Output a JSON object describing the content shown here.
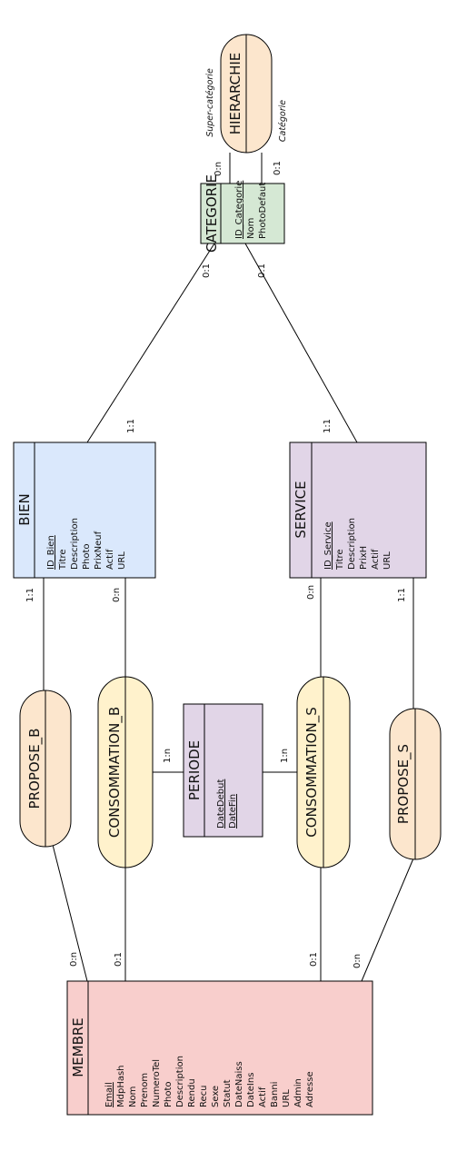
{
  "colors": {
    "membre": "#f8cecc",
    "bien": "#dae8fc",
    "service": "#e1d5e7",
    "categorie": "#d5e8d4",
    "periode": "#e1d5e7",
    "assoc_orange": "#fce6cd",
    "assoc_yellow": "#fff2cc",
    "stroke": "#000000"
  },
  "entities": {
    "membre": {
      "title": "MEMBRE",
      "attributes": [
        "Email",
        "MdpHash",
        "Nom",
        "Prenom",
        "NumeroTel",
        "Photo",
        "Description",
        "Rendu",
        "Recu",
        "Sexe",
        "Statut",
        "DateNaiss",
        "DateIns",
        "Actif",
        "Banni",
        "URL",
        "Admin",
        "Adresse"
      ]
    },
    "bien": {
      "title": "BIEN",
      "attributes": [
        "ID_Bien",
        "Titre",
        "Description",
        "Photo",
        "PrixNeuf",
        "Actif",
        "URL"
      ]
    },
    "service": {
      "title": "SERVICE",
      "attributes": [
        "ID_Service",
        "Titre",
        "Description",
        "PrixH",
        "Actif",
        "URL"
      ]
    },
    "categorie": {
      "title": "CATEGORIE",
      "attributes": [
        "ID_Categorie",
        "Nom",
        "PhotoDefaut"
      ]
    },
    "periode": {
      "title": "PERIODE",
      "attributes": [
        "DateDebut",
        "DateFin"
      ]
    }
  },
  "associations": {
    "hierarchie": "HIERARCHIE",
    "propose_b": "PROPOSE_B",
    "consommation_b": "CONSOMMATION_B",
    "consommation_s": "CONSOMMATION_S",
    "propose_s": "PROPOSE_S"
  },
  "cardinalities": {
    "hier_super": "0:n",
    "hier_cat": "0:1",
    "cat_bien": "0:1",
    "cat_service": "0:1",
    "bien_cat": "1:1",
    "service_cat": "1:1",
    "bien_proposeb": "1:1",
    "bien_consob": "0:n",
    "service_consos": "0:n",
    "service_proposes": "1:1",
    "periode_consob": "1:n",
    "periode_consos": "1:n",
    "membre_proposeb": "0:n",
    "membre_consob": "0:1",
    "membre_consos": "0:1",
    "membre_proposes": "0:n"
  },
  "roles": {
    "super": "Super-catégorie",
    "cat": "Catégorie"
  }
}
